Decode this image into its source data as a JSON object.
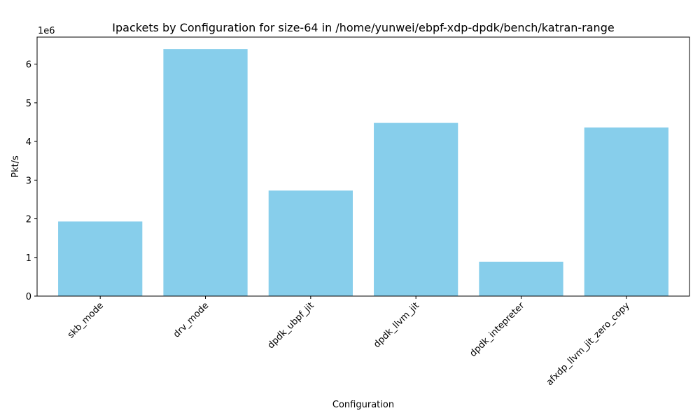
{
  "chart_data": {
    "type": "bar",
    "title": "Ipackets by Configuration for size-64 in /home/yunwei/ebpf-xdp-dpdk/bench/katran-range",
    "xlabel": "Configuration",
    "ylabel": "Pkt/s",
    "y_offset_label": "1e6",
    "categories": [
      "skb_mode",
      "drv_mode",
      "dpdk_ubpf_jit",
      "dpdk_llvm_jit",
      "dpdk_intepreter",
      "afxdp_llvm_jit_zero_copy"
    ],
    "values": [
      1930000,
      6390000,
      2730000,
      4480000,
      890000,
      4360000
    ],
    "y_ticks": [
      0,
      1,
      2,
      3,
      4,
      5,
      6
    ],
    "ylim": [
      0,
      6700000
    ],
    "grid": false,
    "legend": "none",
    "bar_color": "#87CEEB",
    "x_tick_rotation_deg": 45
  }
}
